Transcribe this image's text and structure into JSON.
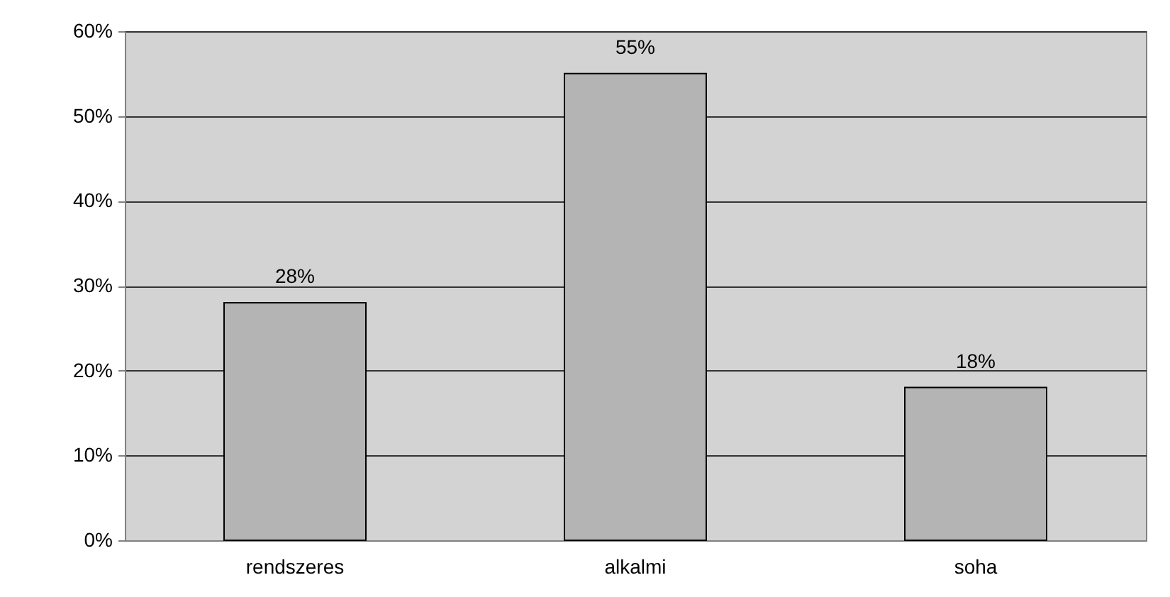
{
  "chart_data": {
    "type": "bar",
    "categories": [
      "rendszeres",
      "alkalmi",
      "soha"
    ],
    "values": [
      28,
      55,
      18
    ],
    "color": "#b4b4b4",
    "value_labels": [
      "28%",
      "55%",
      "18%"
    ],
    "ylim": [
      0,
      60
    ],
    "yticks": [
      {
        "value": 0,
        "label": "0%"
      },
      {
        "value": 10,
        "label": "10%"
      },
      {
        "value": 20,
        "label": "20%"
      },
      {
        "value": 30,
        "label": "30%"
      },
      {
        "value": 40,
        "label": "40%"
      },
      {
        "value": 50,
        "label": "50%"
      },
      {
        "value": 60,
        "label": "60%"
      }
    ],
    "grid": "y"
  }
}
